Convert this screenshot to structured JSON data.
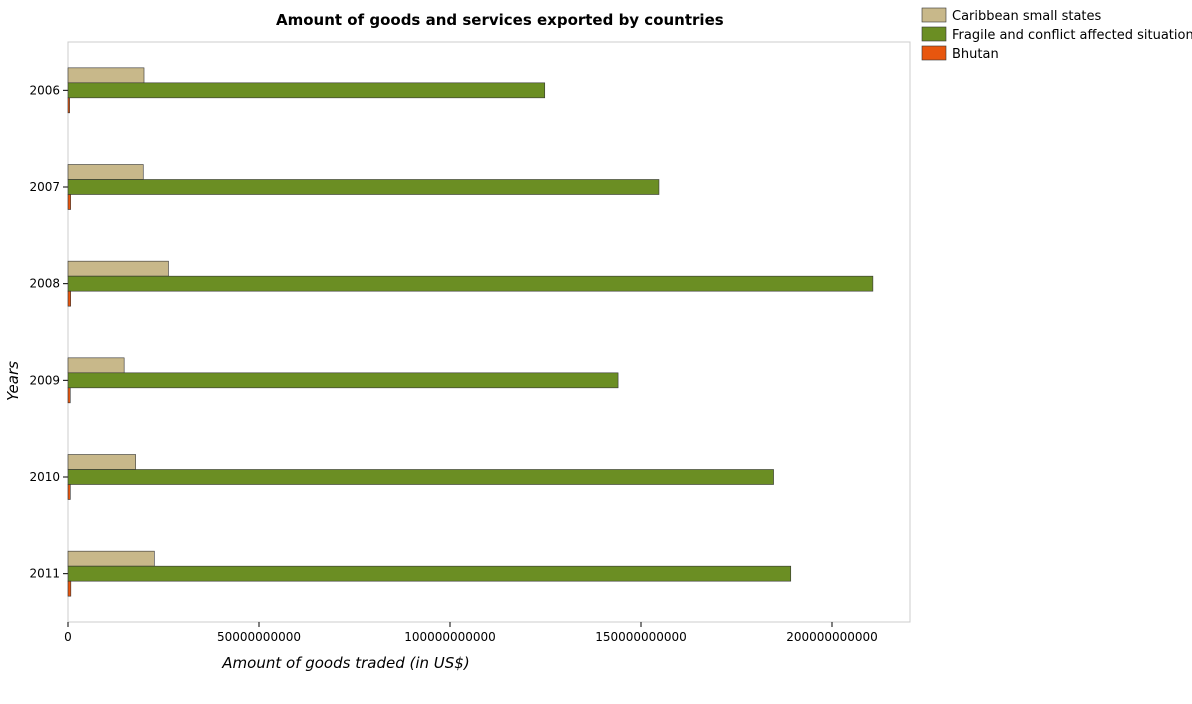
{
  "chart_data": {
    "type": "bar",
    "orientation": "horizontal",
    "title": "Amount of goods and services exported by countries",
    "xlabel": "Amount of goods traded (in US$)",
    "ylabel": "Years",
    "categories": [
      "2006",
      "2007",
      "2008",
      "2009",
      "2010",
      "2011"
    ],
    "xlim": [
      0,
      220000000000
    ],
    "x_ticks": [
      0,
      50000000000,
      100000000000,
      150000000000,
      200000000000
    ],
    "x_tick_labels": [
      "0",
      "50000000000",
      "100000000000",
      "150000000000",
      "200000000000"
    ],
    "series": [
      {
        "name": "Caribbean small states",
        "color": "#c8b88a",
        "values": [
          19900000000,
          19700000000,
          26300000000,
          14700000000,
          17700000000,
          22600000000
        ]
      },
      {
        "name": "Fragile and conflict affected situations",
        "color": "#6b8e23",
        "values": [
          124800000000,
          154700000000,
          210700000000,
          144000000000,
          184700000000,
          189200000000
        ]
      },
      {
        "name": "Bhutan",
        "color": "#e8560e",
        "values": [
          420000000,
          690000000,
          700000000,
          590000000,
          600000000,
          740000000
        ]
      }
    ],
    "legend_position": "top-right",
    "grid": false
  }
}
